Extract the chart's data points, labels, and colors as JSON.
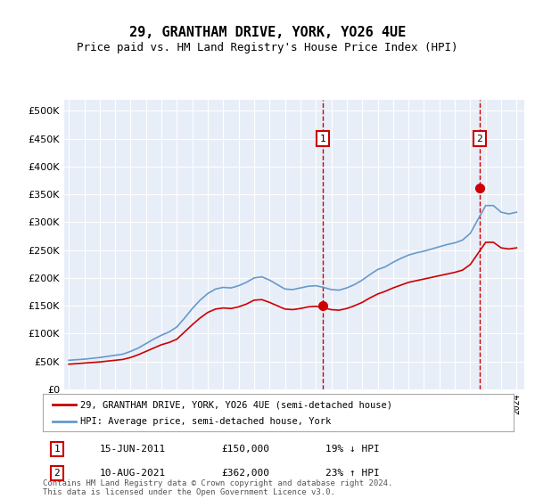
{
  "title": "29, GRANTHAM DRIVE, YORK, YO26 4UE",
  "subtitle": "Price paid vs. HM Land Registry's House Price Index (HPI)",
  "legend_line1": "29, GRANTHAM DRIVE, YORK, YO26 4UE (semi-detached house)",
  "legend_line2": "HPI: Average price, semi-detached house, York",
  "footer": "Contains HM Land Registry data © Crown copyright and database right 2024.\nThis data is licensed under the Open Government Licence v3.0.",
  "transaction1_label": "1",
  "transaction1_date": "15-JUN-2011",
  "transaction1_price": 150000,
  "transaction1_year": 2011.45,
  "transaction2_label": "2",
  "transaction2_date": "10-AUG-2021",
  "transaction2_price": 362000,
  "transaction2_year": 2021.61,
  "red_color": "#cc0000",
  "blue_color": "#6699cc",
  "background_color": "#e8eef8",
  "ylim": [
    0,
    500000
  ],
  "xlim_start": 1995.0,
  "xlim_end": 2024.5,
  "hpi_years": [
    1995,
    1995.5,
    1996,
    1996.5,
    1997,
    1997.5,
    1998,
    1998.5,
    1999,
    1999.5,
    2000,
    2000.5,
    2001,
    2001.5,
    2002,
    2002.5,
    2003,
    2003.5,
    2004,
    2004.5,
    2005,
    2005.5,
    2006,
    2006.5,
    2007,
    2007.5,
    2008,
    2008.5,
    2009,
    2009.5,
    2010,
    2010.5,
    2011,
    2011.5,
    2012,
    2012.5,
    2013,
    2013.5,
    2014,
    2014.5,
    2015,
    2015.5,
    2016,
    2016.5,
    2017,
    2017.5,
    2018,
    2018.5,
    2019,
    2019.5,
    2020,
    2020.5,
    2021,
    2021.5,
    2022,
    2022.5,
    2023,
    2023.5,
    2024
  ],
  "hpi_values": [
    52000,
    53000,
    54000,
    55500,
    57000,
    59000,
    61000,
    63000,
    68000,
    74000,
    82000,
    90000,
    97000,
    103000,
    112000,
    128000,
    145000,
    160000,
    172000,
    180000,
    183000,
    182000,
    186000,
    192000,
    200000,
    202000,
    196000,
    188000,
    180000,
    179000,
    182000,
    185000,
    186000,
    183000,
    179000,
    178000,
    182000,
    188000,
    196000,
    206000,
    215000,
    220000,
    228000,
    235000,
    241000,
    245000,
    248000,
    252000,
    256000,
    260000,
    263000,
    268000,
    280000,
    305000,
    330000,
    330000,
    318000,
    315000,
    318000
  ],
  "red_years": [
    1995,
    1995.5,
    1996,
    1996.5,
    1997,
    1997.5,
    1998,
    1998.5,
    1999,
    1999.5,
    2000,
    2000.5,
    2001,
    2001.5,
    2002,
    2002.5,
    2003,
    2003.5,
    2004,
    2004.5,
    2005,
    2005.5,
    2006,
    2006.5,
    2007,
    2007.5,
    2008,
    2008.5,
    2009,
    2009.5,
    2010,
    2010.5,
    2011,
    2011.5,
    2012,
    2012.5,
    2013,
    2013.5,
    2014,
    2014.5,
    2015,
    2015.5,
    2016,
    2016.5,
    2017,
    2017.5,
    2018,
    2018.5,
    2019,
    2019.5,
    2020,
    2020.5,
    2021,
    2021.5,
    2022,
    2022.5,
    2023,
    2023.5,
    2024
  ],
  "red_values": [
    45000,
    46000,
    47000,
    48000,
    49000,
    50500,
    52000,
    53500,
    57000,
    62000,
    68000,
    74000,
    80000,
    84000,
    90000,
    103000,
    116000,
    128000,
    138000,
    144000,
    146000,
    145000,
    148000,
    153000,
    160000,
    161000,
    156000,
    150000,
    144000,
    143000,
    145000,
    148000,
    149000,
    146000,
    143000,
    142000,
    145000,
    150000,
    156000,
    164000,
    171000,
    176000,
    182000,
    187000,
    192000,
    195000,
    198000,
    201000,
    204000,
    207000,
    210000,
    214000,
    224000,
    244000,
    264000,
    264000,
    254000,
    252000,
    254000
  ]
}
